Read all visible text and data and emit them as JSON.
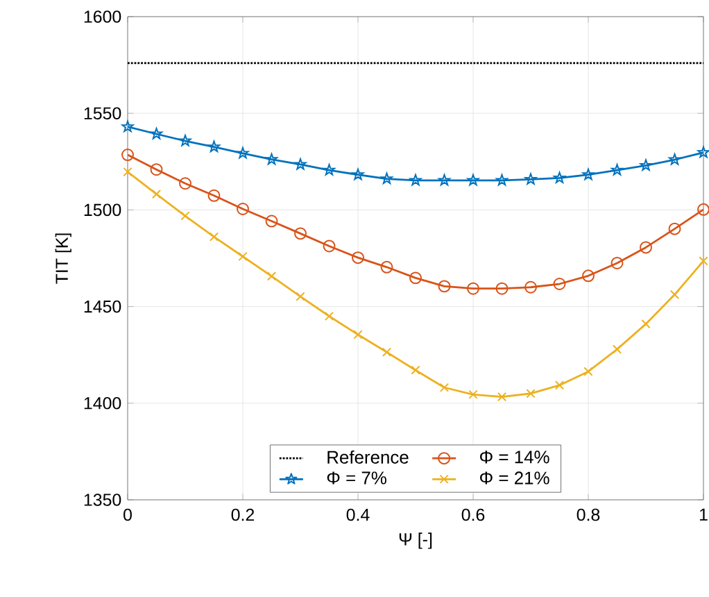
{
  "chart_data": {
    "type": "line",
    "xlabel": "Ψ [-]",
    "ylabel": "TIT [K]",
    "xlim": [
      0,
      1
    ],
    "ylim": [
      1350,
      1600
    ],
    "xticks": [
      0,
      0.2,
      0.4,
      0.6,
      0.8,
      1
    ],
    "yticks": [
      1350,
      1400,
      1450,
      1500,
      1550,
      1600
    ],
    "grid": true,
    "legend": "bottom",
    "x": [
      0,
      0.05,
      0.1,
      0.15,
      0.2,
      0.25,
      0.3,
      0.35,
      0.4,
      0.45,
      0.5,
      0.55,
      0.6,
      0.65,
      0.7,
      0.75,
      0.8,
      0.85,
      0.9,
      0.95,
      1
    ],
    "series": [
      {
        "name": "Reference",
        "color": "#000000",
        "marker": "none",
        "line_style": "dotted",
        "x": [
          0,
          1
        ],
        "values": [
          1576,
          1576
        ]
      },
      {
        "name": "Φ = 7%",
        "color": "#0072bd",
        "marker": "star",
        "line_style": "solid",
        "values": [
          1543,
          1539.3,
          1535.7,
          1532.6,
          1529.3,
          1526.1,
          1523.5,
          1520.6,
          1518.2,
          1516.1,
          1515.3,
          1515.3,
          1515.3,
          1515.3,
          1515.8,
          1516.5,
          1518.2,
          1520.6,
          1523,
          1526,
          1529.7
        ]
      },
      {
        "name": "Φ = 14%",
        "color": "#d95319",
        "marker": "circle",
        "line_style": "solid",
        "values": [
          1528.5,
          1520.9,
          1513.7,
          1507.4,
          1500.5,
          1494.2,
          1487.8,
          1481.3,
          1475.3,
          1470.4,
          1464.8,
          1460.5,
          1459.3,
          1459.3,
          1460,
          1461.7,
          1465.9,
          1472.5,
          1480.6,
          1490.2,
          1500.2
        ]
      },
      {
        "name": "Φ = 21%",
        "color": "#edb120",
        "marker": "cross",
        "line_style": "solid",
        "values": [
          1519.7,
          1508.2,
          1496.9,
          1486.1,
          1475.9,
          1465.7,
          1455.2,
          1445,
          1435.5,
          1426.4,
          1417.1,
          1408.1,
          1404.5,
          1403.3,
          1405,
          1409.3,
          1416.4,
          1427.9,
          1441,
          1456.2,
          1473.6
        ]
      }
    ]
  }
}
